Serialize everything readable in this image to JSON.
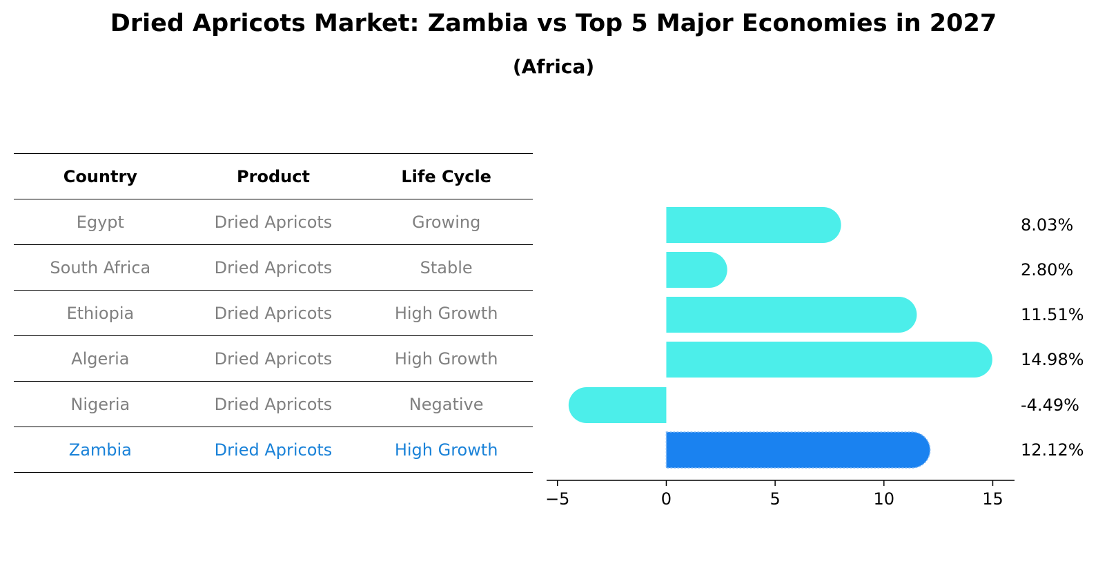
{
  "title": "Dried Apricots Market: Zambia vs Top 5 Major Economies in 2027",
  "subtitle": "(Africa)",
  "table": {
    "headers": [
      "Country",
      "Product",
      "Life Cycle"
    ],
    "rows": [
      [
        "Egypt",
        "Dried Apricots",
        "Growing"
      ],
      [
        "South Africa",
        "Dried Apricots",
        "Stable"
      ],
      [
        "Ethiopia",
        "Dried Apricots",
        "High Growth"
      ],
      [
        "Algeria",
        "Dried Apricots",
        "High Growth"
      ],
      [
        "Nigeria",
        "Dried Apricots",
        "Negative"
      ],
      [
        "Zambia",
        "Dried Apricots",
        "High Growth"
      ]
    ],
    "highlight_row": 5
  },
  "colors": {
    "bar": "#4ceeea",
    "highlight_bar": "#1a82f0",
    "muted_text": "#808080",
    "highlight_text": "#1a82d8"
  },
  "chart_data": {
    "type": "bar",
    "orientation": "horizontal",
    "categories": [
      "Egypt",
      "South Africa",
      "Ethiopia",
      "Algeria",
      "Nigeria",
      "Zambia"
    ],
    "values": [
      8.03,
      2.8,
      11.51,
      14.98,
      -4.49,
      12.12
    ],
    "labels": [
      "8.03%",
      "2.80%",
      "11.51%",
      "14.98%",
      "-4.49%",
      "12.12%"
    ],
    "highlight_index": 5,
    "xlim": [
      -5.5,
      16
    ],
    "xticks": [
      -5,
      0,
      5,
      10,
      15
    ],
    "xtick_labels": [
      "−5",
      "0",
      "5",
      "10",
      "15"
    ],
    "xlabel": "",
    "ylabel": ""
  }
}
